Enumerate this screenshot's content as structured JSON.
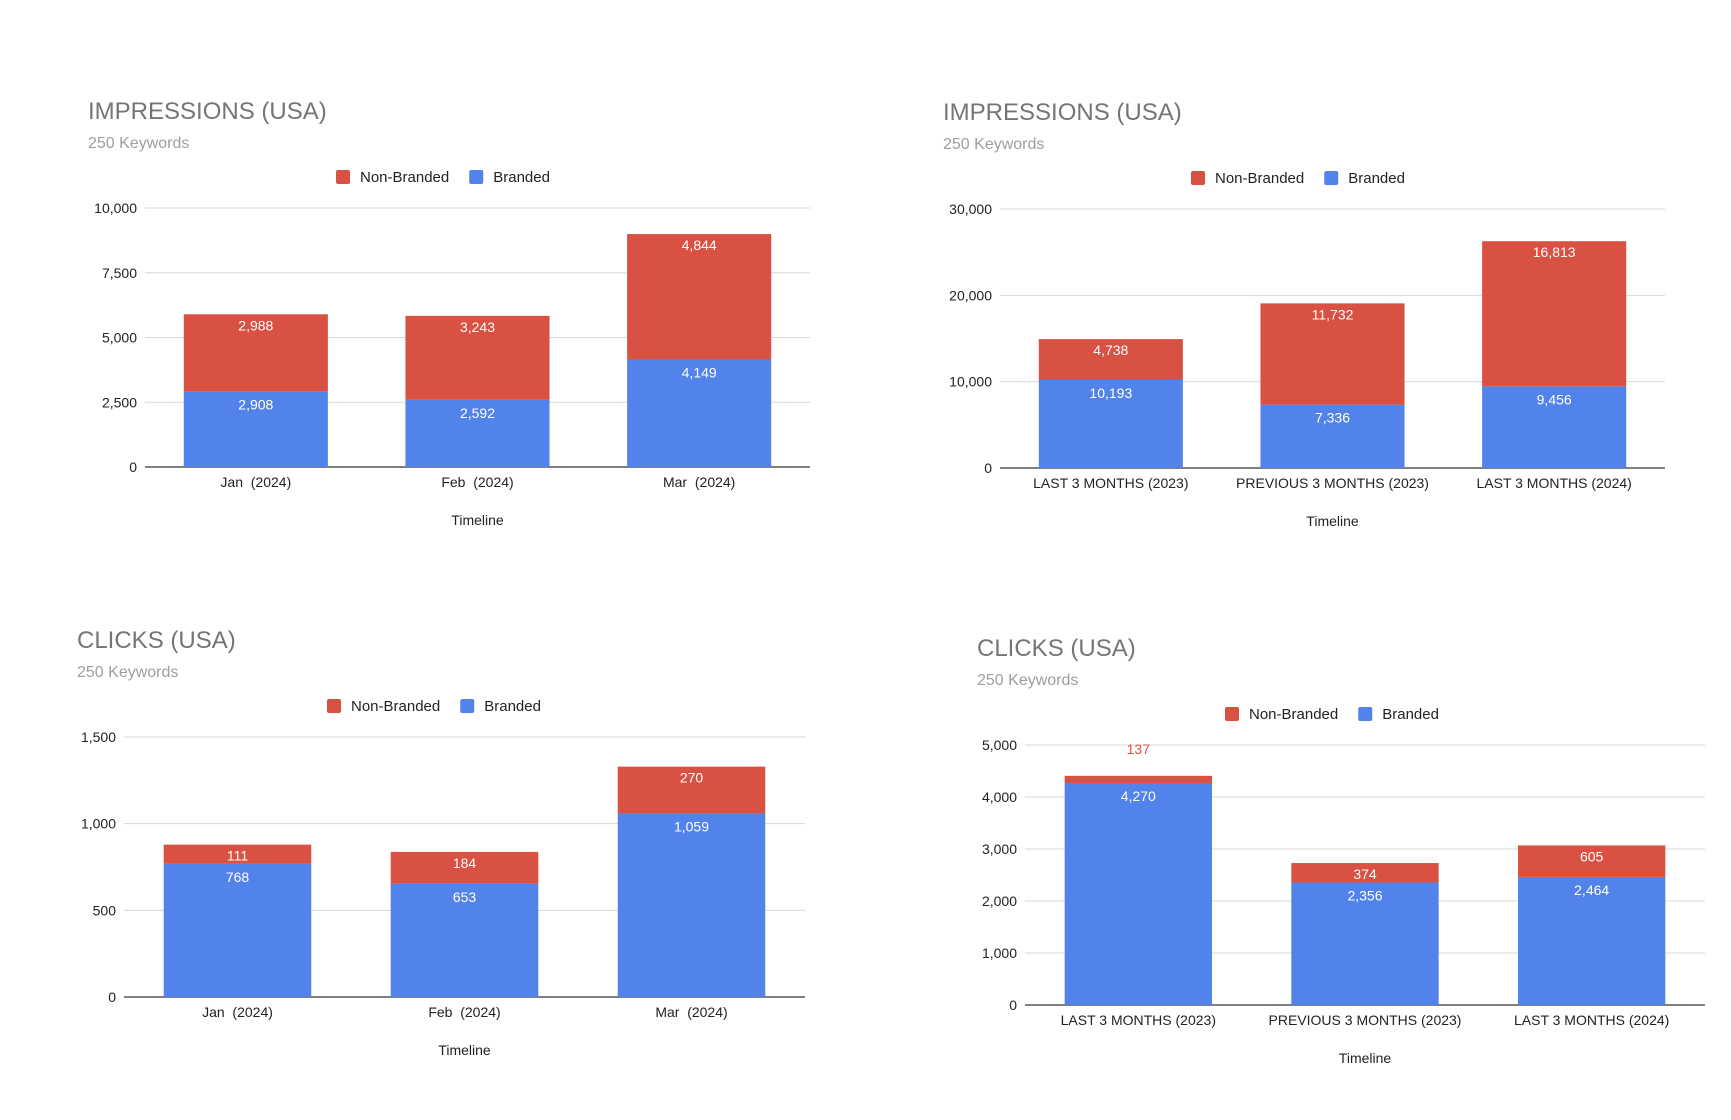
{
  "chart_data": [
    {
      "type": "bar",
      "stacked": true,
      "title": "IMPRESSIONS (USA)",
      "subtitle": "250 Keywords",
      "xlabel": "Timeline",
      "ylabel": "",
      "ylim": [
        0,
        10000
      ],
      "yticks": [
        "0",
        "2,500",
        "5,000",
        "7,500",
        "10,000"
      ],
      "yticks_values": [
        0,
        2500,
        5000,
        7500,
        10000
      ],
      "categories": [
        "Jan  (2024)",
        "Feb  (2024)",
        "Mar  (2024)"
      ],
      "legend_position": "top",
      "series": [
        {
          "name": "Branded",
          "color": "#5283eb",
          "values": [
            2908,
            2592,
            4149
          ],
          "labels": [
            "2,908",
            "2,592",
            "4,149"
          ]
        },
        {
          "name": "Non-Branded",
          "color": "#d95142",
          "values": [
            2988,
            3243,
            4844
          ],
          "labels": [
            "2,988",
            "3,243",
            "4,844"
          ]
        }
      ]
    },
    {
      "type": "bar",
      "stacked": true,
      "title": "IMPRESSIONS (USA)",
      "subtitle": "250 Keywords",
      "xlabel": "Timeline",
      "ylabel": "",
      "ylim": [
        0,
        30000
      ],
      "yticks": [
        "0",
        "10,000",
        "20,000",
        "30,000"
      ],
      "yticks_values": [
        0,
        10000,
        20000,
        30000
      ],
      "categories": [
        "LAST 3 MONTHS (2023)",
        "PREVIOUS 3 MONTHS (2023)",
        "LAST 3 MONTHS (2024)"
      ],
      "legend_position": "top",
      "series": [
        {
          "name": "Branded",
          "color": "#5283eb",
          "values": [
            10193,
            7336,
            9456
          ],
          "labels": [
            "10,193",
            "7,336",
            "9,456"
          ]
        },
        {
          "name": "Non-Branded",
          "color": "#d95142",
          "values": [
            4738,
            11732,
            16813
          ],
          "labels": [
            "4,738",
            "11,732",
            "16,813"
          ]
        }
      ]
    },
    {
      "type": "bar",
      "stacked": true,
      "title": "CLICKS (USA)",
      "subtitle": "250 Keywords",
      "xlabel": "Timeline",
      "ylabel": "",
      "ylim": [
        0,
        1500
      ],
      "yticks": [
        "0",
        "500",
        "1,000",
        "1,500"
      ],
      "yticks_values": [
        0,
        500,
        1000,
        1500
      ],
      "categories": [
        "Jan  (2024)",
        "Feb  (2024)",
        "Mar  (2024)"
      ],
      "legend_position": "top",
      "series": [
        {
          "name": "Branded",
          "color": "#5283eb",
          "values": [
            768,
            653,
            1059
          ],
          "labels": [
            "768",
            "653",
            "1,059"
          ]
        },
        {
          "name": "Non-Branded",
          "color": "#d95142",
          "values": [
            111,
            184,
            270
          ],
          "labels": [
            "111",
            "184",
            "270"
          ]
        }
      ]
    },
    {
      "type": "bar",
      "stacked": true,
      "title": "CLICKS (USA)",
      "subtitle": "250 Keywords",
      "xlabel": "Timeline",
      "ylabel": "",
      "ylim": [
        0,
        5000
      ],
      "yticks": [
        "0",
        "1,000",
        "2,000",
        "3,000",
        "4,000",
        "5,000"
      ],
      "yticks_values": [
        0,
        1000,
        2000,
        3000,
        4000,
        5000
      ],
      "categories": [
        "LAST 3 MONTHS (2023)",
        "PREVIOUS 3 MONTHS (2023)",
        "LAST 3 MONTHS (2024)"
      ],
      "legend_position": "top",
      "series": [
        {
          "name": "Branded",
          "color": "#5283eb",
          "values": [
            4270,
            2356,
            2464
          ],
          "labels": [
            "4,270",
            "2,356",
            "2,464"
          ]
        },
        {
          "name": "Non-Branded",
          "color": "#d95142",
          "values": [
            137,
            374,
            605
          ],
          "labels": [
            "137",
            "374",
            "605"
          ]
        }
      ]
    }
  ]
}
